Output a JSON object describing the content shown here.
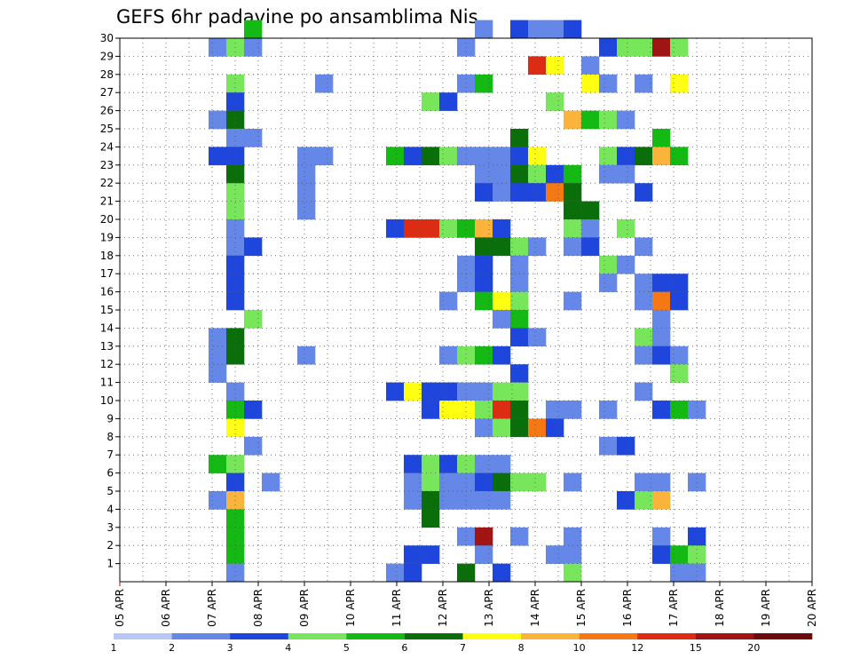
{
  "chart_data": {
    "type": "heatmap",
    "title": "GEFS 6hr padavine po ansamblima Nis",
    "y_ticks": [
      "1",
      "2",
      "3",
      "4",
      "5",
      "6",
      "7",
      "8",
      "9",
      "10",
      "11",
      "12",
      "13",
      "14",
      "15",
      "16",
      "17",
      "18",
      "19",
      "20",
      "21",
      "22",
      "23",
      "24",
      "25",
      "26",
      "27",
      "28",
      "29",
      "30"
    ],
    "x_ticks": [
      "05 APR",
      "06 APR",
      "07 APR",
      "08 APR",
      "09 APR",
      "10 APR",
      "11 APR",
      "12 APR",
      "13 APR",
      "14 APR",
      "15 APR",
      "16 APR",
      "17 APR",
      "18 APR",
      "19 APR",
      "20 APR"
    ],
    "x_range_steps": [
      0,
      60
    ],
    "y_range_members": [
      0,
      30
    ],
    "steps_per_day": 4,
    "grid": "dotted",
    "legend": "colorbar-bottom",
    "colorbar": {
      "labels": [
        "1",
        "2",
        "3",
        "4",
        "5",
        "6",
        "7",
        "8",
        "10",
        "12",
        "15",
        "20"
      ],
      "colors": [
        "#b8c8f4",
        "#6487e8",
        "#1e46dc",
        "#78e65a",
        "#14b914",
        "#0a6e0a",
        "#ffff14",
        "#fab43c",
        "#f57814",
        "#dc2d14",
        "#a01414",
        "#6e0a0a"
      ]
    },
    "cells": [
      [
        7,
        30,
        4
      ],
      [
        20,
        30,
        1
      ],
      [
        22,
        30,
        2
      ],
      [
        23,
        30,
        1
      ],
      [
        24,
        30,
        1
      ],
      [
        25,
        30,
        2
      ],
      [
        5,
        29,
        1
      ],
      [
        6,
        29,
        3
      ],
      [
        7,
        29,
        1
      ],
      [
        19,
        29,
        1
      ],
      [
        27,
        29,
        2
      ],
      [
        28,
        29,
        3
      ],
      [
        29,
        29,
        3
      ],
      [
        30,
        29,
        10
      ],
      [
        31,
        29,
        3
      ],
      [
        23,
        28,
        9
      ],
      [
        24,
        28,
        6
      ],
      [
        26,
        28,
        1
      ],
      [
        6,
        27,
        3
      ],
      [
        11,
        27,
        1
      ],
      [
        19,
        27,
        1
      ],
      [
        20,
        27,
        4
      ],
      [
        26,
        27,
        6
      ],
      [
        27,
        27,
        1
      ],
      [
        29,
        27,
        1
      ],
      [
        31,
        27,
        6
      ],
      [
        6,
        26,
        2
      ],
      [
        17,
        26,
        3
      ],
      [
        18,
        26,
        2
      ],
      [
        24,
        26,
        3
      ],
      [
        5,
        25,
        1
      ],
      [
        6,
        25,
        5
      ],
      [
        25,
        25,
        7
      ],
      [
        26,
        25,
        4
      ],
      [
        27,
        25,
        3
      ],
      [
        28,
        25,
        1
      ],
      [
        6,
        24,
        1
      ],
      [
        7,
        24,
        1
      ],
      [
        22,
        24,
        5
      ],
      [
        30,
        24,
        4
      ],
      [
        5,
        23,
        2
      ],
      [
        6,
        23,
        2
      ],
      [
        10,
        23,
        1
      ],
      [
        11,
        23,
        1
      ],
      [
        15,
        23,
        4
      ],
      [
        16,
        23,
        2
      ],
      [
        17,
        23,
        5
      ],
      [
        18,
        23,
        3
      ],
      [
        19,
        23,
        1
      ],
      [
        20,
        23,
        1
      ],
      [
        21,
        23,
        1
      ],
      [
        22,
        23,
        2
      ],
      [
        23,
        23,
        6
      ],
      [
        27,
        23,
        3
      ],
      [
        28,
        23,
        2
      ],
      [
        29,
        23,
        5
      ],
      [
        30,
        23,
        7
      ],
      [
        31,
        23,
        4
      ],
      [
        6,
        22,
        5
      ],
      [
        10,
        22,
        1
      ],
      [
        20,
        22,
        1
      ],
      [
        21,
        22,
        1
      ],
      [
        22,
        22,
        5
      ],
      [
        23,
        22,
        3
      ],
      [
        24,
        22,
        2
      ],
      [
        25,
        22,
        4
      ],
      [
        27,
        22,
        1
      ],
      [
        28,
        22,
        1
      ],
      [
        6,
        21,
        3
      ],
      [
        10,
        21,
        1
      ],
      [
        20,
        21,
        2
      ],
      [
        21,
        21,
        1
      ],
      [
        22,
        21,
        2
      ],
      [
        23,
        21,
        2
      ],
      [
        24,
        21,
        8
      ],
      [
        25,
        21,
        5
      ],
      [
        29,
        21,
        2
      ],
      [
        6,
        20,
        3
      ],
      [
        10,
        20,
        1
      ],
      [
        25,
        20,
        5
      ],
      [
        26,
        20,
        5
      ],
      [
        6,
        19,
        1
      ],
      [
        15,
        19,
        2
      ],
      [
        16,
        19,
        9
      ],
      [
        17,
        19,
        9
      ],
      [
        18,
        19,
        3
      ],
      [
        19,
        19,
        4
      ],
      [
        20,
        19,
        7
      ],
      [
        21,
        19,
        2
      ],
      [
        25,
        19,
        3
      ],
      [
        26,
        19,
        1
      ],
      [
        28,
        19,
        3
      ],
      [
        6,
        18,
        1
      ],
      [
        7,
        18,
        2
      ],
      [
        20,
        18,
        5
      ],
      [
        21,
        18,
        5
      ],
      [
        22,
        18,
        3
      ],
      [
        23,
        18,
        1
      ],
      [
        25,
        18,
        1
      ],
      [
        26,
        18,
        2
      ],
      [
        29,
        18,
        1
      ],
      [
        6,
        17,
        2
      ],
      [
        19,
        17,
        1
      ],
      [
        20,
        17,
        2
      ],
      [
        22,
        17,
        1
      ],
      [
        27,
        17,
        3
      ],
      [
        28,
        17,
        1
      ],
      [
        6,
        16,
        2
      ],
      [
        19,
        16,
        1
      ],
      [
        20,
        16,
        2
      ],
      [
        22,
        16,
        1
      ],
      [
        27,
        16,
        1
      ],
      [
        29,
        16,
        1
      ],
      [
        30,
        16,
        2
      ],
      [
        31,
        16,
        2
      ],
      [
        6,
        15,
        2
      ],
      [
        18,
        15,
        1
      ],
      [
        20,
        15,
        4
      ],
      [
        21,
        15,
        6
      ],
      [
        22,
        15,
        3
      ],
      [
        25,
        15,
        1
      ],
      [
        29,
        15,
        1
      ],
      [
        30,
        15,
        8
      ],
      [
        31,
        15,
        2
      ],
      [
        7,
        14,
        3
      ],
      [
        21,
        14,
        1
      ],
      [
        22,
        14,
        4
      ],
      [
        30,
        14,
        1
      ],
      [
        5,
        13,
        1
      ],
      [
        6,
        13,
        5
      ],
      [
        22,
        13,
        2
      ],
      [
        23,
        13,
        1
      ],
      [
        29,
        13,
        3
      ],
      [
        30,
        13,
        1
      ],
      [
        5,
        12,
        1
      ],
      [
        6,
        12,
        5
      ],
      [
        10,
        12,
        1
      ],
      [
        18,
        12,
        1
      ],
      [
        19,
        12,
        3
      ],
      [
        20,
        12,
        4
      ],
      [
        21,
        12,
        2
      ],
      [
        29,
        12,
        1
      ],
      [
        30,
        12,
        2
      ],
      [
        31,
        12,
        1
      ],
      [
        5,
        11,
        1
      ],
      [
        22,
        11,
        2
      ],
      [
        31,
        11,
        3
      ],
      [
        6,
        10,
        1
      ],
      [
        15,
        10,
        2
      ],
      [
        16,
        10,
        6
      ],
      [
        17,
        10,
        2
      ],
      [
        18,
        10,
        2
      ],
      [
        19,
        10,
        1
      ],
      [
        20,
        10,
        1
      ],
      [
        21,
        10,
        3
      ],
      [
        22,
        10,
        3
      ],
      [
        29,
        10,
        1
      ],
      [
        6,
        9,
        4
      ],
      [
        7,
        9,
        2
      ],
      [
        17,
        9,
        2
      ],
      [
        18,
        9,
        6
      ],
      [
        19,
        9,
        6
      ],
      [
        20,
        9,
        3
      ],
      [
        21,
        9,
        9
      ],
      [
        22,
        9,
        5
      ],
      [
        24,
        9,
        1
      ],
      [
        25,
        9,
        1
      ],
      [
        27,
        9,
        1
      ],
      [
        30,
        9,
        2
      ],
      [
        31,
        9,
        4
      ],
      [
        32,
        9,
        1
      ],
      [
        6,
        8,
        6
      ],
      [
        20,
        8,
        1
      ],
      [
        21,
        8,
        3
      ],
      [
        22,
        8,
        5
      ],
      [
        23,
        8,
        8
      ],
      [
        24,
        8,
        2
      ],
      [
        7,
        7,
        1
      ],
      [
        27,
        7,
        1
      ],
      [
        28,
        7,
        2
      ],
      [
        5,
        6,
        4
      ],
      [
        6,
        6,
        3
      ],
      [
        16,
        6,
        2
      ],
      [
        17,
        6,
        3
      ],
      [
        18,
        6,
        2
      ],
      [
        19,
        6,
        3
      ],
      [
        20,
        6,
        1
      ],
      [
        21,
        6,
        1
      ],
      [
        6,
        5,
        2
      ],
      [
        8,
        5,
        1
      ],
      [
        16,
        5,
        1
      ],
      [
        17,
        5,
        3
      ],
      [
        18,
        5,
        1
      ],
      [
        19,
        5,
        1
      ],
      [
        20,
        5,
        2
      ],
      [
        21,
        5,
        5
      ],
      [
        22,
        5,
        3
      ],
      [
        23,
        5,
        3
      ],
      [
        25,
        5,
        1
      ],
      [
        29,
        5,
        1
      ],
      [
        30,
        5,
        1
      ],
      [
        32,
        5,
        1
      ],
      [
        5,
        4,
        1
      ],
      [
        6,
        4,
        7
      ],
      [
        16,
        4,
        1
      ],
      [
        17,
        4,
        5
      ],
      [
        18,
        4,
        1
      ],
      [
        19,
        4,
        1
      ],
      [
        20,
        4,
        1
      ],
      [
        21,
        4,
        1
      ],
      [
        28,
        4,
        2
      ],
      [
        29,
        4,
        3
      ],
      [
        30,
        4,
        7
      ],
      [
        6,
        3,
        4
      ],
      [
        17,
        3,
        5
      ],
      [
        6,
        2,
        4
      ],
      [
        19,
        2,
        1
      ],
      [
        20,
        2,
        10
      ],
      [
        22,
        2,
        1
      ],
      [
        25,
        2,
        1
      ],
      [
        30,
        2,
        1
      ],
      [
        32,
        2,
        2
      ],
      [
        6,
        1,
        4
      ],
      [
        16,
        1,
        2
      ],
      [
        17,
        1,
        2
      ],
      [
        20,
        1,
        1
      ],
      [
        24,
        1,
        1
      ],
      [
        25,
        1,
        1
      ],
      [
        30,
        1,
        2
      ],
      [
        31,
        1,
        4
      ],
      [
        32,
        1,
        3
      ],
      [
        6,
        0,
        1
      ],
      [
        15,
        0,
        1
      ],
      [
        16,
        0,
        2
      ],
      [
        19,
        0,
        5
      ],
      [
        21,
        0,
        2
      ],
      [
        25,
        0,
        3
      ],
      [
        31,
        0,
        1
      ],
      [
        32,
        0,
        1
      ]
    ]
  }
}
